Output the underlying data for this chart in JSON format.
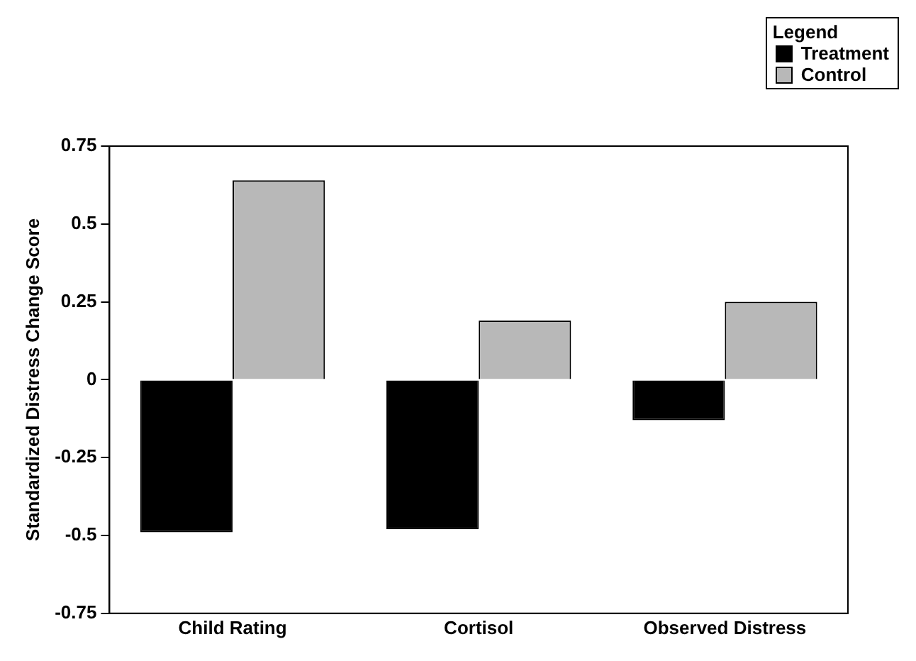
{
  "chart_data": {
    "type": "bar",
    "ylabel": "Standardized Distress Change Score",
    "legend_title": "Legend",
    "categories": [
      "Child Rating",
      "Cortisol",
      "Observed Distress"
    ],
    "series": [
      {
        "name": "Treatment",
        "color": "#000000",
        "values": [
          -0.49,
          -0.48,
          -0.13
        ]
      },
      {
        "name": "Control",
        "color": "#b8b8b8",
        "values": [
          0.64,
          0.19,
          0.25
        ]
      }
    ],
    "ylim": [
      -0.75,
      0.75
    ],
    "yticks": [
      -0.75,
      -0.5,
      -0.25,
      0,
      0.25,
      0.5,
      0.75
    ],
    "grid": false,
    "legend": "top right"
  }
}
